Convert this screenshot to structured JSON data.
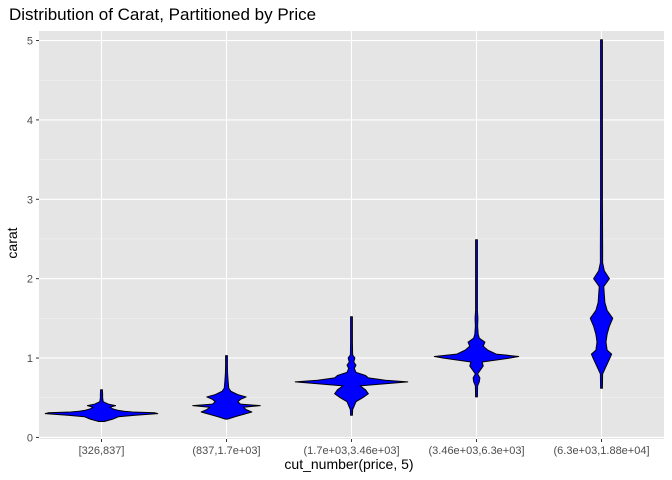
{
  "chart_data": {
    "type": "violin",
    "title": "Distribution of Carat, Partitioned by Price",
    "xlabel": "cut_number(price, 5)",
    "ylabel": "carat",
    "categories": [
      "[326,837]",
      "(837,1.7e+03]",
      "(1.7e+03,3.46e+03]",
      "(3.46e+03,6.3e+03]",
      "(6.3e+03,1.88e+04]"
    ],
    "ylim": [
      -0.02,
      5.12
    ],
    "yticks": [
      0,
      1,
      2,
      3,
      4,
      5
    ],
    "grid": true,
    "legend": "none",
    "fill_color": "#0000ff",
    "outline_color": "#000000",
    "panel_color": "#e5e5e5",
    "series": [
      {
        "category": "[326,837]",
        "min": 0.2,
        "max": 0.6,
        "density": [
          [
            0.2,
            0.05
          ],
          [
            0.23,
            0.2
          ],
          [
            0.26,
            0.3
          ],
          [
            0.28,
            0.6
          ],
          [
            0.3,
            1.0
          ],
          [
            0.31,
            0.95
          ],
          [
            0.32,
            0.55
          ],
          [
            0.33,
            0.4
          ],
          [
            0.34,
            0.3
          ],
          [
            0.36,
            0.2
          ],
          [
            0.38,
            0.15
          ],
          [
            0.4,
            0.25
          ],
          [
            0.42,
            0.12
          ],
          [
            0.45,
            0.03
          ],
          [
            0.5,
            0.02
          ],
          [
            0.55,
            0.02
          ],
          [
            0.6,
            0.01
          ]
        ]
      },
      {
        "category": "(837,1.7e+03]",
        "min": 0.23,
        "max": 1.03,
        "density": [
          [
            0.23,
            0.02
          ],
          [
            0.26,
            0.15
          ],
          [
            0.29,
            0.3
          ],
          [
            0.32,
            0.45
          ],
          [
            0.35,
            0.35
          ],
          [
            0.38,
            0.3
          ],
          [
            0.4,
            0.6
          ],
          [
            0.42,
            0.25
          ],
          [
            0.45,
            0.2
          ],
          [
            0.48,
            0.25
          ],
          [
            0.51,
            0.35
          ],
          [
            0.54,
            0.2
          ],
          [
            0.58,
            0.08
          ],
          [
            0.62,
            0.04
          ],
          [
            0.7,
            0.03
          ],
          [
            0.8,
            0.02
          ],
          [
            0.9,
            0.015
          ],
          [
            1.03,
            0.01
          ]
        ]
      },
      {
        "category": "(1.7e+03,3.46e+03]",
        "min": 0.28,
        "max": 1.52,
        "density": [
          [
            0.28,
            0.01
          ],
          [
            0.35,
            0.02
          ],
          [
            0.45,
            0.08
          ],
          [
            0.5,
            0.2
          ],
          [
            0.55,
            0.3
          ],
          [
            0.6,
            0.25
          ],
          [
            0.65,
            0.15
          ],
          [
            0.7,
            1.0
          ],
          [
            0.72,
            0.6
          ],
          [
            0.75,
            0.3
          ],
          [
            0.78,
            0.25
          ],
          [
            0.82,
            0.08
          ],
          [
            0.87,
            0.05
          ],
          [
            0.91,
            0.08
          ],
          [
            0.95,
            0.04
          ],
          [
            1.0,
            0.06
          ],
          [
            1.04,
            0.02
          ],
          [
            1.2,
            0.015
          ],
          [
            1.52,
            0.01
          ]
        ]
      },
      {
        "category": "(3.46e+03,6.3e+03]",
        "min": 0.51,
        "max": 2.49,
        "density": [
          [
            0.51,
            0.01
          ],
          [
            0.65,
            0.02
          ],
          [
            0.7,
            0.05
          ],
          [
            0.75,
            0.06
          ],
          [
            0.8,
            0.02
          ],
          [
            0.9,
            0.12
          ],
          [
            0.95,
            0.1
          ],
          [
            1.0,
            0.6
          ],
          [
            1.02,
            0.75
          ],
          [
            1.05,
            0.35
          ],
          [
            1.1,
            0.2
          ],
          [
            1.15,
            0.12
          ],
          [
            1.2,
            0.15
          ],
          [
            1.25,
            0.05
          ],
          [
            1.3,
            0.03
          ],
          [
            1.4,
            0.02
          ],
          [
            1.5,
            0.025
          ],
          [
            1.6,
            0.01
          ],
          [
            2.0,
            0.01
          ],
          [
            2.49,
            0.005
          ]
        ]
      },
      {
        "category": "(6.3e+03,1.88e+04]",
        "min": 0.62,
        "max": 5.01,
        "density": [
          [
            0.62,
            0.01
          ],
          [
            0.8,
            0.02
          ],
          [
            1.0,
            0.15
          ],
          [
            1.05,
            0.18
          ],
          [
            1.1,
            0.1
          ],
          [
            1.2,
            0.08
          ],
          [
            1.3,
            0.1
          ],
          [
            1.4,
            0.14
          ],
          [
            1.5,
            0.2
          ],
          [
            1.6,
            0.1
          ],
          [
            1.7,
            0.06
          ],
          [
            1.8,
            0.05
          ],
          [
            1.9,
            0.04
          ],
          [
            2.0,
            0.14
          ],
          [
            2.1,
            0.05
          ],
          [
            2.2,
            0.02
          ],
          [
            2.4,
            0.02
          ],
          [
            3.0,
            0.008
          ],
          [
            4.0,
            0.005
          ],
          [
            5.01,
            0.003
          ]
        ]
      }
    ]
  }
}
